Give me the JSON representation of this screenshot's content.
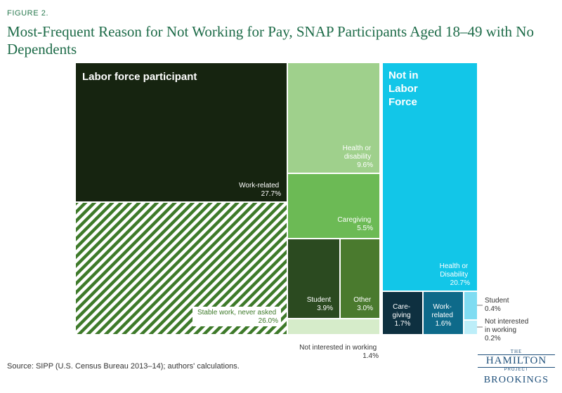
{
  "figure_label": "FIGURE 2.",
  "title": "Most-Frequent Reason for Not Working for Pay, SNAP Participants Aged 18–49 with No Dependents",
  "source": "Source: SIPP (U.S. Census Bureau 2013–14); authors' calculations.",
  "logos": {
    "the": "THE",
    "hamilton": "HAMILTON",
    "project": "PROJECT",
    "brookings": "BROOKINGS"
  },
  "chart_data": {
    "type": "treemap",
    "groups": [
      {
        "name": "Labor force participant",
        "color": "#162410"
      },
      {
        "name": "Not in Labor Force",
        "color": "#12c6e8"
      }
    ],
    "items": [
      {
        "group": "Labor force participant",
        "label": "Work-related",
        "value": 27.7,
        "color": "#162410",
        "text_color": "#ffffff"
      },
      {
        "group": "Labor force participant",
        "label": "Stable work, never asked",
        "value": 26.0,
        "color": "#3e7a2a",
        "pattern": "diagonal-stripes",
        "text_color": "#3e7a2a"
      },
      {
        "group": "Labor force participant",
        "label": "Health or disability",
        "value": 9.6,
        "color": "#9fd08c",
        "text_color": "#ffffff"
      },
      {
        "group": "Labor force participant",
        "label": "Caregiving",
        "value": 5.5,
        "color": "#6cba55",
        "text_color": "#ffffff"
      },
      {
        "group": "Labor force participant",
        "label": "Student",
        "value": 3.9,
        "color": "#2b4a20",
        "text_color": "#ffffff"
      },
      {
        "group": "Labor force participant",
        "label": "Other",
        "value": 3.0,
        "color": "#4a7a2e",
        "text_color": "#ffffff"
      },
      {
        "group": "Labor force participant",
        "label": "Not interested in working",
        "value": 1.4,
        "color": "#d6ecca",
        "text_color": "#333333"
      },
      {
        "group": "Not in Labor Force",
        "label": "Health or Disability",
        "value": 20.7,
        "color": "#12c6e8",
        "text_color": "#ffffff"
      },
      {
        "group": "Not in Labor Force",
        "label": "Care-giving",
        "value": 1.7,
        "color": "#0e3040",
        "text_color": "#ffffff"
      },
      {
        "group": "Not in Labor Force",
        "label": "Work-related",
        "value": 1.6,
        "color": "#0e6a8a",
        "text_color": "#ffffff"
      },
      {
        "group": "Not in Labor Force",
        "label": "Student",
        "value": 0.4,
        "color": "#7fdcf2",
        "text_color": "#333333"
      },
      {
        "group": "Not in Labor Force",
        "label": "Not interested in working",
        "value": 0.2,
        "color": "#bdeef9",
        "text_color": "#333333"
      }
    ]
  }
}
